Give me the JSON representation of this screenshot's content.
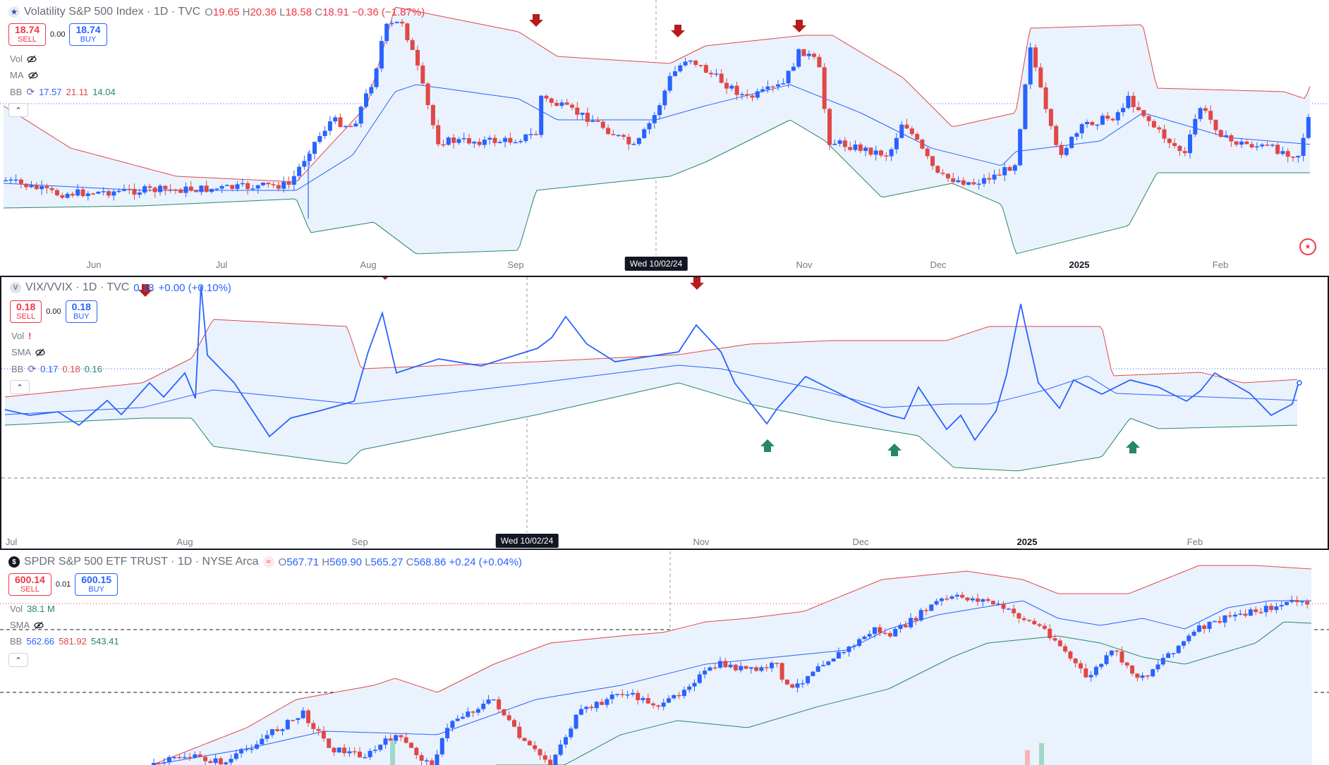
{
  "pane1": {
    "symbol": "Volatility S&P 500 Index · 1D · TVC",
    "ohlc": {
      "o_label": "O",
      "o": "19.65",
      "h_label": "H",
      "h": "20.36",
      "l_label": "L",
      "l": "18.58",
      "c_label": "C",
      "c": "18.91",
      "change": "−0.36 (−1.87%)"
    },
    "sell": {
      "price": "18.74",
      "label": "SELL"
    },
    "buy": {
      "price": "18.74",
      "label": "BUY"
    },
    "spread": "0.00",
    "vol_label": "Vol",
    "ma_label": "MA",
    "bb_label": "BB",
    "bb_values": [
      "17.57",
      "21.11",
      "14.04"
    ],
    "x_labels": [
      "Jun",
      "Jul",
      "Aug",
      "Sep",
      "Nov",
      "Dec",
      "2025",
      "Feb"
    ],
    "crosshair_label": "Wed 10/02/24"
  },
  "pane2": {
    "symbol": "VIX/VVIX · 1D · TVC",
    "value": "0.18",
    "change": "+0.00 (+0.10%)",
    "sell": {
      "price": "0.18",
      "label": "SELL"
    },
    "buy": {
      "price": "0.18",
      "label": "BUY"
    },
    "spread": "0.00",
    "vol_label": "Vol",
    "sma_label": "SMA",
    "bb_label": "BB",
    "bb_values": [
      "0.17",
      "0.18",
      "0.16"
    ],
    "x_labels": [
      "Jul",
      "Aug",
      "Sep",
      "Nov",
      "Dec",
      "2025",
      "Feb"
    ],
    "crosshair_label": "Wed 10/02/24"
  },
  "pane3": {
    "symbol": "SPDR S&P 500 ETF TRUST · 1D · NYSE Arca",
    "ohlc": {
      "o_label": "O",
      "o": "567.71",
      "h_label": "H",
      "h": "569.90",
      "l_label": "L",
      "l": "565.27",
      "c_label": "C",
      "c": "568.86",
      "change": "+0.24 (+0.04%)"
    },
    "sell": {
      "price": "600.14",
      "label": "SELL"
    },
    "buy": {
      "price": "600.15",
      "label": "BUY"
    },
    "spread": "0.01",
    "vol_label": "Vol",
    "vol_value": "38.1 M",
    "sma_label": "SMA",
    "bb_label": "BB",
    "bb_values": [
      "562.66",
      "581.92",
      "543.41"
    ]
  },
  "colors": {
    "up": "#2962ff",
    "down": "#e04747",
    "bb_upper": "#e04747",
    "bb_basis": "#2962ff",
    "bb_lower": "#26876a",
    "bb_fill": "#eaf2fd",
    "arrow_down": "#b71c1c",
    "arrow_up": "#26876a"
  }
}
